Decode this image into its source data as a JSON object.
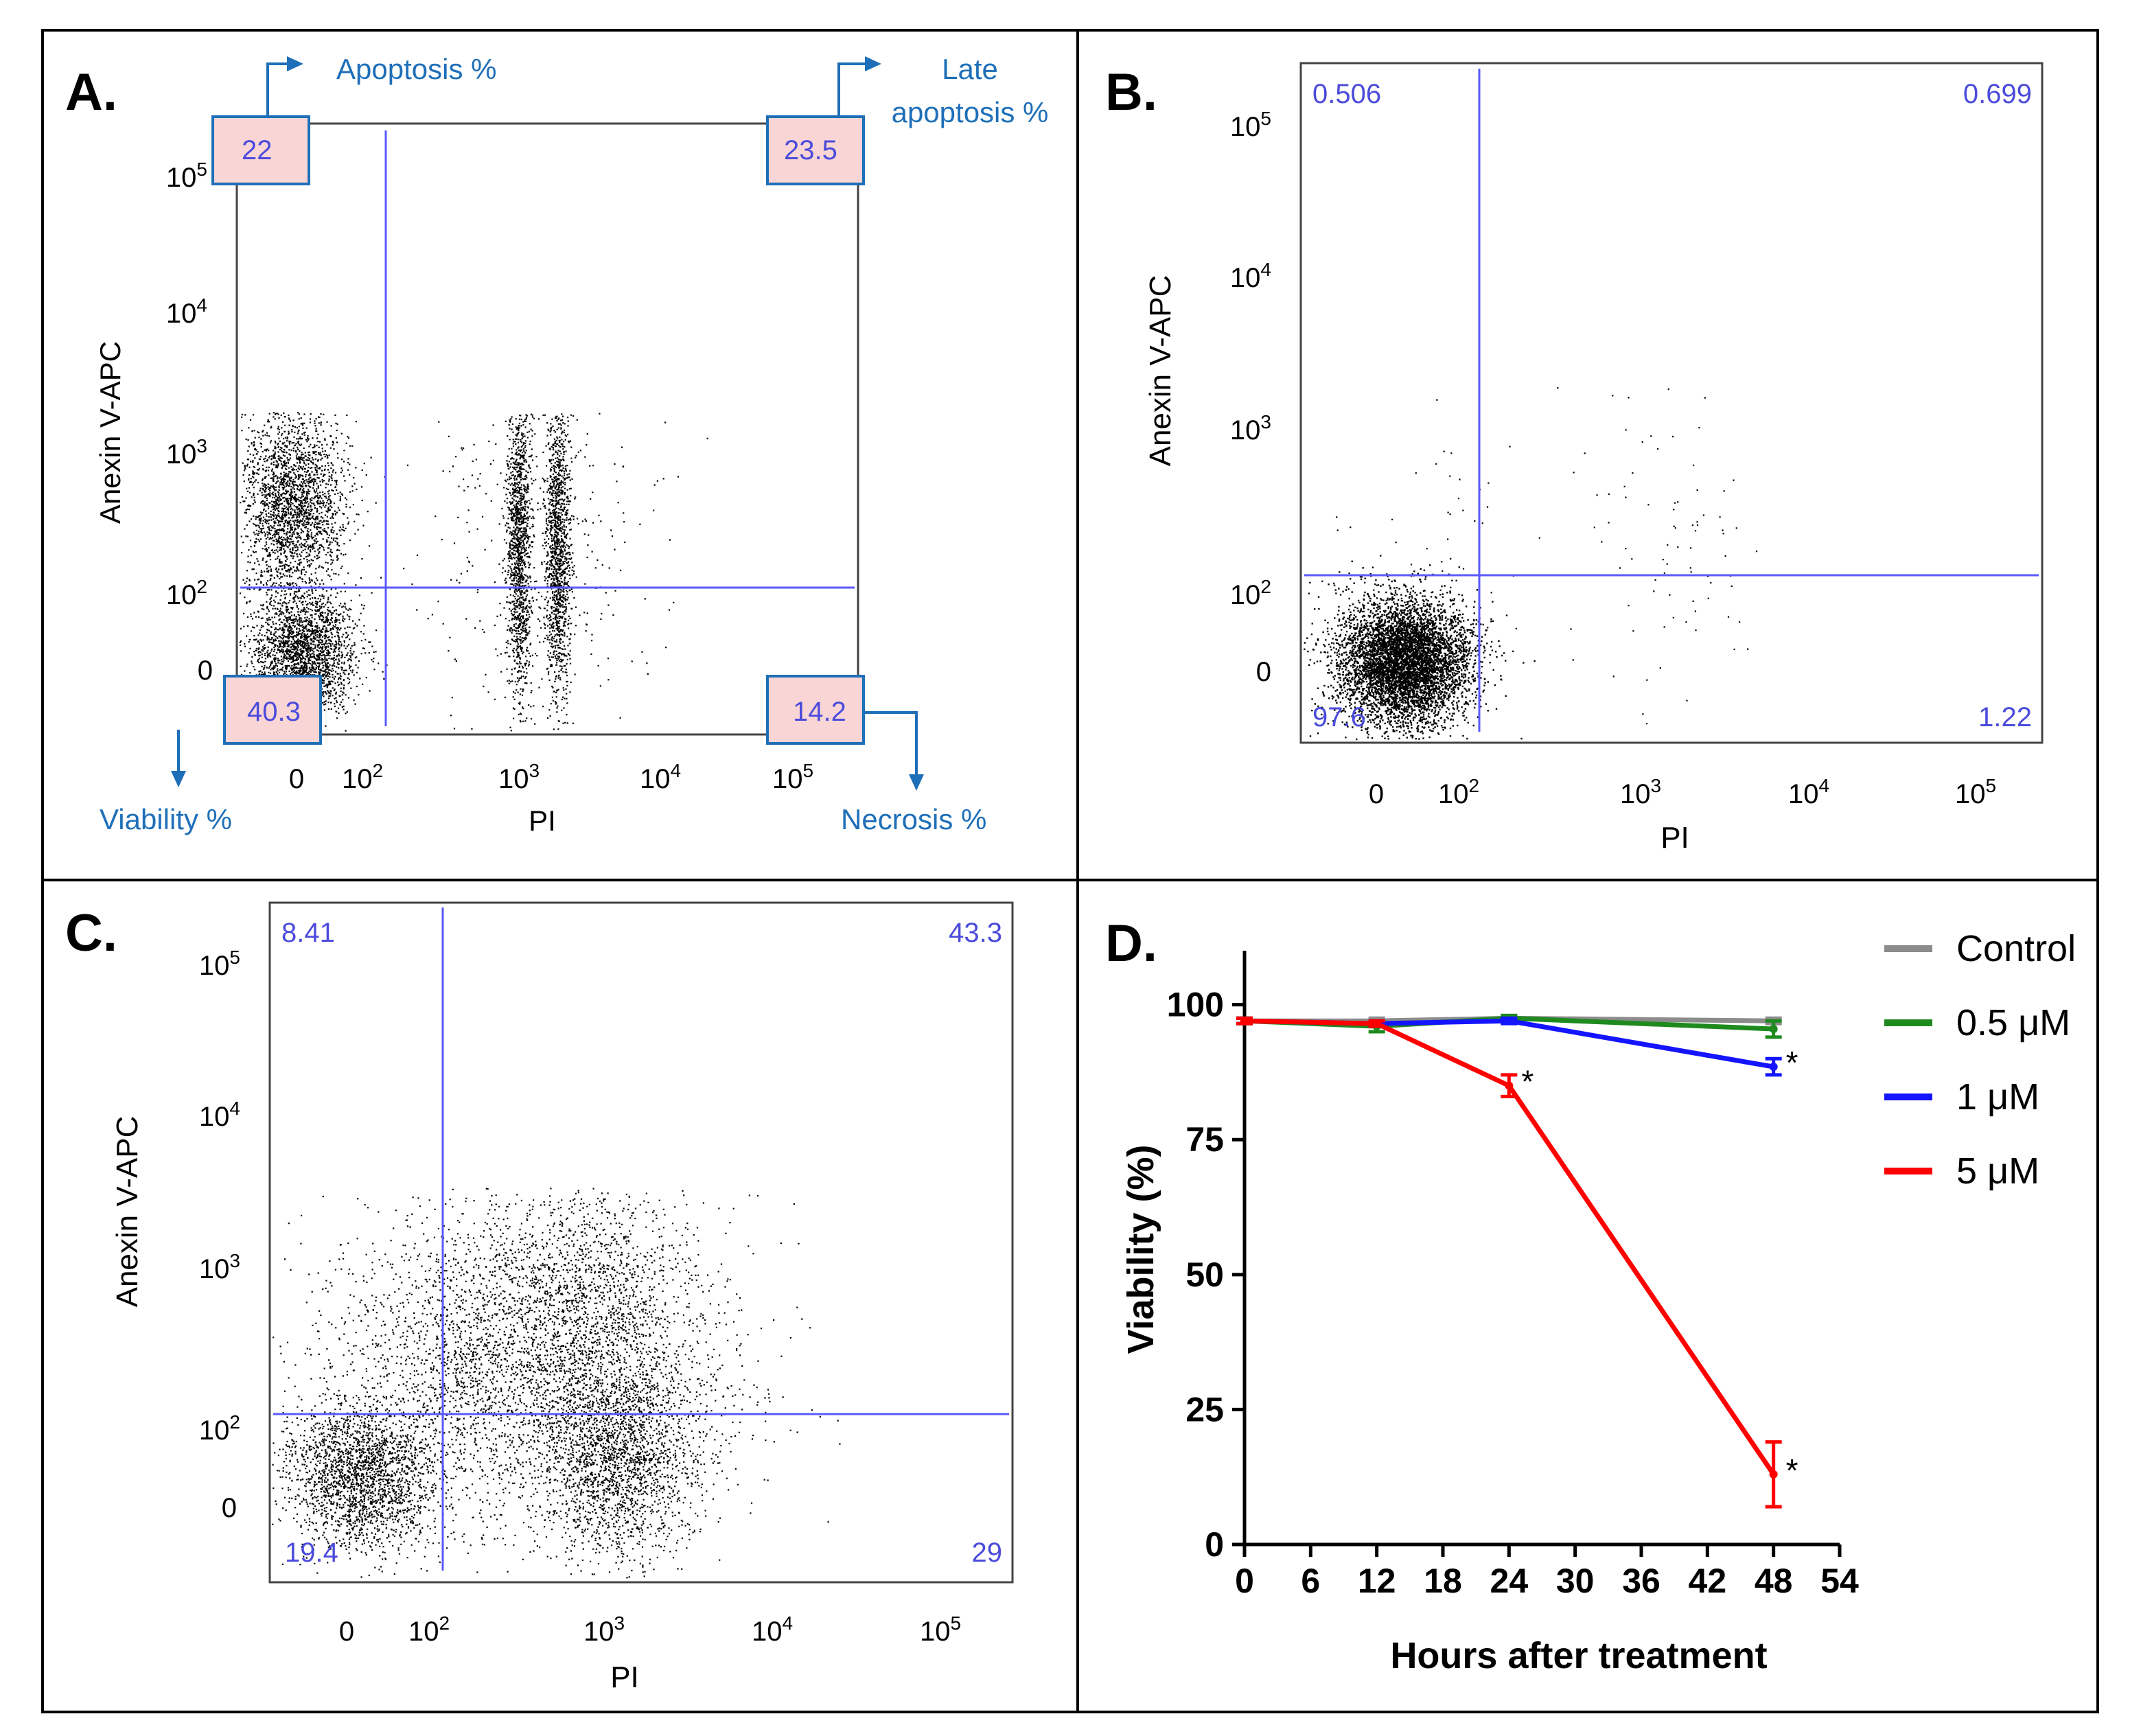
{
  "colors": {
    "frame": "#000000",
    "gate": "#5a5aff",
    "quadrant_value": "#4b4bdc",
    "annotation": "#1e6fb8",
    "highlight_fill": "#f9d5d5",
    "control": "#8c8c8c",
    "c05": "#1e8a1e",
    "c1": "#1414ff",
    "c5": "#ff0000"
  },
  "panels": {
    "A": {
      "label": "A.",
      "ylabel": "Anexin V-APC",
      "xlabel": "PI",
      "x_ticks": [
        "0",
        "10^2",
        "10^3",
        "10^4",
        "10^5"
      ],
      "y_ticks": [
        "0",
        "10^2",
        "10^3",
        "10^4",
        "10^5"
      ],
      "quadrants": {
        "upper_left": "22",
        "upper_right": "23.5",
        "lower_left": "40.3",
        "lower_right": "14.2"
      },
      "annotations": {
        "upper_left": "Apoptosis %",
        "upper_right_line1": "Late",
        "upper_right_line2": "apoptosis %",
        "lower_left": "Viability %",
        "lower_right": "Necrosis %"
      }
    },
    "B": {
      "label": "B.",
      "ylabel": "Anexin V-APC",
      "xlabel": "PI",
      "x_ticks": [
        "0",
        "10^2",
        "10^3",
        "10^4",
        "10^5"
      ],
      "y_ticks": [
        "0",
        "10^2",
        "10^3",
        "10^4",
        "10^5"
      ],
      "quadrants": {
        "upper_left": "0.506",
        "upper_right": "0.699",
        "lower_left": "97.6",
        "lower_right": "1.22"
      }
    },
    "C": {
      "label": "C.",
      "ylabel": "Anexin V-APC",
      "xlabel": "PI",
      "x_ticks": [
        "0",
        "10^2",
        "10^3",
        "10^4",
        "10^5"
      ],
      "y_ticks": [
        "0",
        "10^2",
        "10^3",
        "10^4",
        "10^5"
      ],
      "quadrants": {
        "upper_left": "8.41",
        "upper_right": "43.3",
        "lower_left": "19.4",
        "lower_right": "29"
      }
    },
    "D": {
      "label": "D."
    }
  },
  "chart_data": {
    "type": "line",
    "title": "",
    "xlabel": "Hours after treatment",
    "ylabel": "Viability (%)",
    "x_ticks": [
      0,
      6,
      12,
      18,
      24,
      30,
      36,
      42,
      48,
      54
    ],
    "y_ticks": [
      0,
      25,
      50,
      75,
      100
    ],
    "xlim": [
      0,
      54
    ],
    "ylim": [
      0,
      110
    ],
    "legend_position": "top-right",
    "series": [
      {
        "name": "Control",
        "color": "#8c8c8c",
        "x": [
          0,
          12,
          24,
          48
        ],
        "y": [
          97,
          97,
          97.5,
          97
        ],
        "err": [
          0.5,
          0.5,
          0.5,
          0.5
        ]
      },
      {
        "name": "0.5 μM",
        "color": "#1e8a1e",
        "x": [
          0,
          12,
          24,
          48
        ],
        "y": [
          97,
          96,
          97.5,
          95.5
        ],
        "err": [
          0.5,
          1,
          0.5,
          1.5
        ]
      },
      {
        "name": "1 μM",
        "color": "#1414ff",
        "x": [
          0,
          12,
          24,
          48
        ],
        "y": [
          97,
          96.5,
          97,
          88.5
        ],
        "err": [
          0.5,
          0.5,
          0.5,
          1.5
        ]
      },
      {
        "name": "5 μM",
        "color": "#ff0000",
        "x": [
          0,
          12,
          24,
          48
        ],
        "y": [
          97,
          96.5,
          85,
          13
        ],
        "err": [
          0.5,
          0.5,
          2,
          6
        ]
      }
    ],
    "significance": [
      {
        "series": "5 μM",
        "x": 24,
        "mark": "*"
      },
      {
        "series": "1 μM",
        "x": 48,
        "mark": "*"
      },
      {
        "series": "5 μM",
        "x": 48,
        "mark": "*"
      }
    ]
  }
}
